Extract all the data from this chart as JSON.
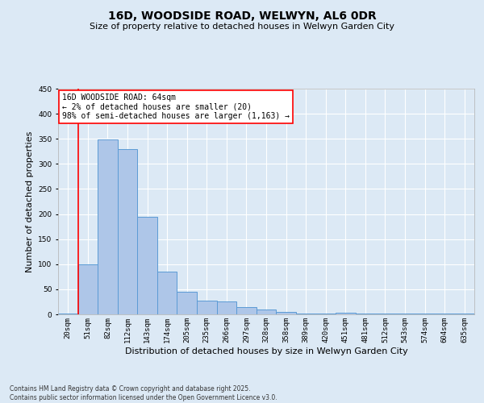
{
  "title": "16D, WOODSIDE ROAD, WELWYN, AL6 0DR",
  "subtitle": "Size of property relative to detached houses in Welwyn Garden City",
  "xlabel": "Distribution of detached houses by size in Welwyn Garden City",
  "ylabel": "Number of detached properties",
  "categories": [
    "20sqm",
    "51sqm",
    "82sqm",
    "112sqm",
    "143sqm",
    "174sqm",
    "205sqm",
    "235sqm",
    "266sqm",
    "297sqm",
    "328sqm",
    "358sqm",
    "389sqm",
    "420sqm",
    "451sqm",
    "481sqm",
    "512sqm",
    "543sqm",
    "574sqm",
    "604sqm",
    "635sqm"
  ],
  "values": [
    2,
    100,
    348,
    330,
    195,
    85,
    45,
    27,
    25,
    14,
    10,
    5,
    2,
    2,
    4,
    2,
    1,
    1,
    1,
    1,
    1
  ],
  "bar_color": "#aec6e8",
  "bar_edge_color": "#5b9bd5",
  "background_color": "#dce9f5",
  "grid_color": "#ffffff",
  "ylim": [
    0,
    450
  ],
  "yticks": [
    0,
    50,
    100,
    150,
    200,
    250,
    300,
    350,
    400,
    450
  ],
  "red_line_x": 0.5,
  "annotation_title": "16D WOODSIDE ROAD: 64sqm",
  "annotation_line1": "← 2% of detached houses are smaller (20)",
  "annotation_line2": "98% of semi-detached houses are larger (1,163) →",
  "footer_line1": "Contains HM Land Registry data © Crown copyright and database right 2025.",
  "footer_line2": "Contains public sector information licensed under the Open Government Licence v3.0.",
  "title_fontsize": 10,
  "subtitle_fontsize": 8,
  "xlabel_fontsize": 8,
  "ylabel_fontsize": 8,
  "tick_fontsize": 6.5,
  "annotation_fontsize": 7,
  "footer_fontsize": 5.5
}
